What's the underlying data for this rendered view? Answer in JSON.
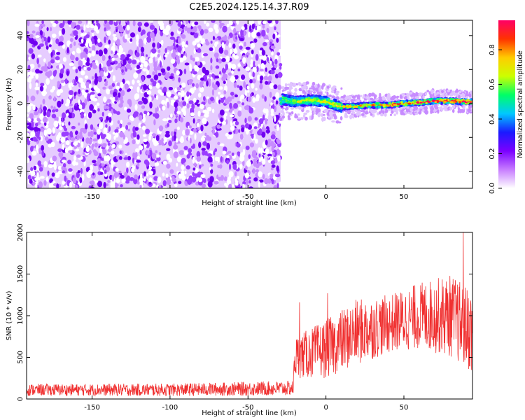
{
  "title": "C2E5.2024.125.14.37.R09",
  "chart_data": [
    {
      "type": "heatmap",
      "xlabel": "Height of straight line (km)",
      "ylabel": "Frequency (Hz)",
      "xlim": [
        -192,
        94
      ],
      "ylim": [
        -50,
        49
      ],
      "x_ticks": [
        -150,
        -100,
        -50,
        0,
        50
      ],
      "y_ticks": [
        -40,
        -20,
        0,
        20,
        40
      ],
      "colorbar": {
        "label": "Normalized spectral amplitude",
        "range": [
          0,
          0.97
        ],
        "ticks": [
          "0.0",
          "0.2",
          "0.4",
          "0.6",
          "0.8"
        ],
        "colormap": [
          "#ffffff",
          "#c77dff",
          "#7b00ff",
          "#1a1aff",
          "#00c8ff",
          "#00ff66",
          "#ccff00",
          "#ffcc00",
          "#ff3300",
          "#ff0066"
        ]
      },
      "noise_region_x": [
        -192,
        -29
      ],
      "signal_track": [
        {
          "x": -28,
          "y": 2.5
        },
        {
          "x": -20,
          "y": 1.0
        },
        {
          "x": -10,
          "y": 2.0
        },
        {
          "x": 0,
          "y": 1.0
        },
        {
          "x": 10,
          "y": -2.0
        },
        {
          "x": 20,
          "y": -1.5
        },
        {
          "x": 30,
          "y": -1.0
        },
        {
          "x": 40,
          "y": -1.0
        },
        {
          "x": 50,
          "y": 0.0
        },
        {
          "x": 60,
          "y": 0.5
        },
        {
          "x": 70,
          "y": 1.5
        },
        {
          "x": 80,
          "y": 1.5
        },
        {
          "x": 90,
          "y": 1.0
        }
      ]
    },
    {
      "type": "line",
      "xlabel": "Height of straight line (km)",
      "ylabel": "SNR (10 * v/v)",
      "xlim": [
        -192,
        94
      ],
      "ylim": [
        0,
        2000
      ],
      "x_ticks": [
        -150,
        -100,
        -50,
        0,
        50
      ],
      "y_ticks": [
        0,
        500,
        1000,
        1500,
        2000
      ],
      "series_color": "#f03030",
      "envelope": [
        {
          "x": -192,
          "base": 110,
          "spread": 70
        },
        {
          "x": -100,
          "base": 110,
          "spread": 75
        },
        {
          "x": -21,
          "base": 130,
          "spread": 90
        },
        {
          "x": -20,
          "base": 500,
          "spread": 250
        },
        {
          "x": 0,
          "base": 600,
          "spread": 350
        },
        {
          "x": 20,
          "base": 800,
          "spread": 400
        },
        {
          "x": 40,
          "base": 900,
          "spread": 350
        },
        {
          "x": 60,
          "base": 1000,
          "spread": 400
        },
        {
          "x": 80,
          "base": 1000,
          "spread": 500
        },
        {
          "x": 94,
          "base": 800,
          "spread": 500
        }
      ],
      "spikes": [
        {
          "x": -17,
          "y": 1160
        },
        {
          "x": 1,
          "y": 1270
        },
        {
          "x": 88,
          "y": 2000
        }
      ]
    }
  ]
}
